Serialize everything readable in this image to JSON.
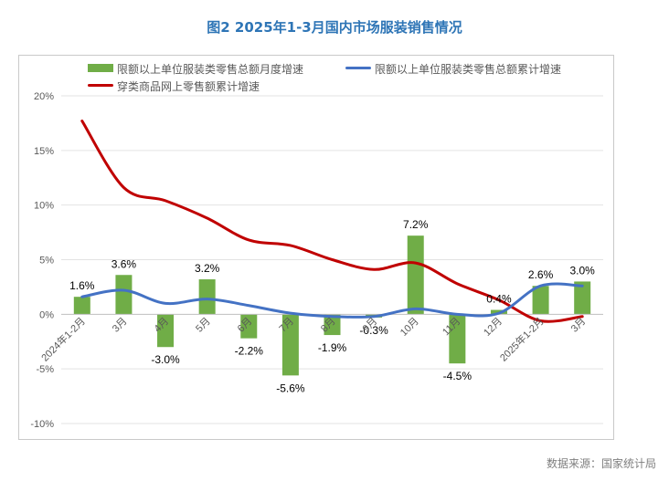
{
  "title": "图2 2025年1-3月国内市场服装销售情况",
  "source": "数据来源：国家统计局",
  "chart_data": {
    "type": "bar",
    "categories": [
      "2024年1-2月",
      "3月",
      "4月",
      "5月",
      "6月",
      "7月",
      "8月",
      "9月",
      "10月",
      "11月",
      "12月",
      "2025年1-2月",
      "3月"
    ],
    "ylim": [
      -10,
      20
    ],
    "yticks": [
      -10,
      -5,
      0,
      5,
      10,
      15,
      20
    ],
    "ytick_labels": [
      "-10%",
      "-5%",
      "0%",
      "5%",
      "10%",
      "15%",
      "20%"
    ],
    "grid": true,
    "legend_position": "top",
    "series": [
      {
        "name": "限额以上单位服装类零售总额月度增速",
        "type": "bar",
        "color": "#70ad47",
        "values": [
          1.6,
          3.6,
          -3.0,
          3.2,
          -2.2,
          -5.6,
          -1.9,
          -0.3,
          7.2,
          -4.5,
          0.4,
          2.6,
          3.0
        ],
        "data_labels": [
          "1.6%",
          "3.6%",
          "-3.0%",
          "3.2%",
          "-2.2%",
          "-5.6%",
          "-1.9%",
          "-0.3%",
          "7.2%",
          "-4.5%",
          "0.4%",
          "2.6%",
          "3.0%"
        ]
      },
      {
        "name": "限额以上单位服装类零售总额累计增速",
        "type": "line",
        "color": "#4472c4",
        "values": [
          1.6,
          2.2,
          1.0,
          1.4,
          0.8,
          0.1,
          -0.2,
          -0.2,
          0.5,
          0.0,
          0.1,
          2.6,
          2.6
        ]
      },
      {
        "name": "穿类商品网上零售额累计增速",
        "type": "line",
        "color": "#c00000",
        "values": [
          17.7,
          11.6,
          10.4,
          8.8,
          6.8,
          6.3,
          5.0,
          4.1,
          4.7,
          2.8,
          1.3,
          -0.6,
          -0.2
        ]
      }
    ]
  }
}
